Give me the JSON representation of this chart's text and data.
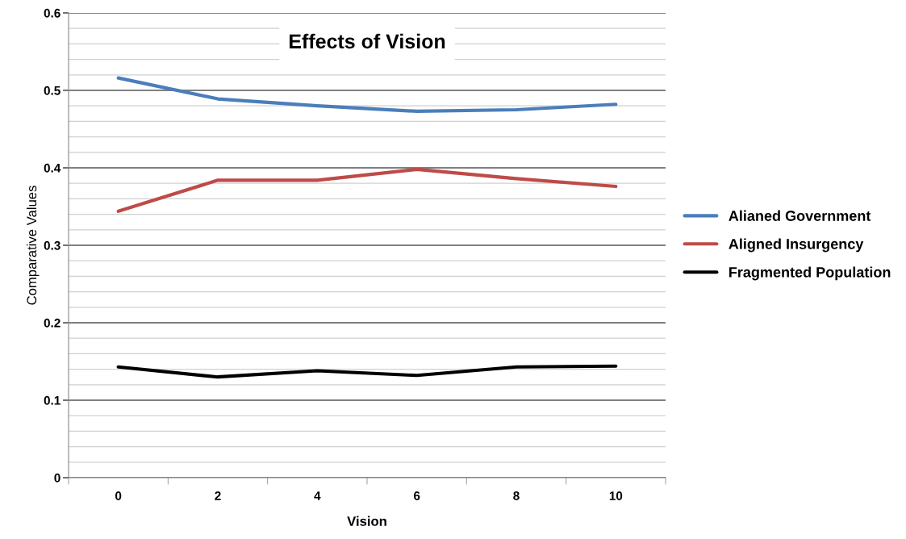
{
  "chart_data": {
    "type": "line",
    "title": "Effects of Vision",
    "xlabel": "Vision",
    "ylabel": "Comparative Values",
    "categories": [
      "0",
      "2",
      "4",
      "6",
      "8",
      "10"
    ],
    "series": [
      {
        "name": "Alianed Government",
        "color": "#4a7ebb",
        "values": [
          0.516,
          0.489,
          0.48,
          0.473,
          0.475,
          0.482
        ]
      },
      {
        "name": "Aligned Insurgency",
        "color": "#be4b48",
        "values": [
          0.344,
          0.384,
          0.384,
          0.398,
          0.386,
          0.376
        ]
      },
      {
        "name": "Fragmented Population",
        "color": "#000000",
        "values": [
          0.143,
          0.13,
          0.138,
          0.132,
          0.143,
          0.144
        ]
      }
    ],
    "ylim": [
      0,
      0.6
    ],
    "yticks": [
      0,
      {
        "value": 0.02,
        "label": null
      },
      {
        "value": 0.04,
        "label": null
      },
      {
        "value": 0.06,
        "label": null
      },
      {
        "value": 0.08,
        "label": null
      },
      0.1,
      {
        "value": 0.12,
        "label": null
      },
      {
        "value": 0.14,
        "label": null
      },
      {
        "value": 0.16,
        "label": null
      },
      {
        "value": 0.18,
        "label": null
      },
      0.2,
      {
        "value": 0.22,
        "label": null
      },
      {
        "value": 0.24,
        "label": null
      },
      {
        "value": 0.26,
        "label": null
      },
      {
        "value": 0.28,
        "label": null
      },
      0.3,
      {
        "value": 0.32,
        "label": null
      },
      {
        "value": 0.34,
        "label": null
      },
      {
        "value": 0.36,
        "label": null
      },
      {
        "value": 0.38,
        "label": null
      },
      0.4,
      {
        "value": 0.42,
        "label": null
      },
      {
        "value": 0.44,
        "label": null
      },
      {
        "value": 0.46,
        "label": null
      },
      {
        "value": 0.48,
        "label": null
      },
      0.5,
      {
        "value": 0.52,
        "label": null
      },
      {
        "value": 0.54,
        "label": null
      },
      {
        "value": 0.56,
        "label": null
      },
      {
        "value": 0.58,
        "label": null
      },
      0.6
    ],
    "grid": "y",
    "legend": "right",
    "marker": "none",
    "line_style": "solid"
  }
}
